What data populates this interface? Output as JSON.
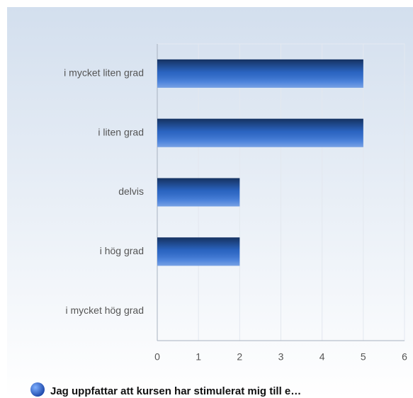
{
  "chart_data": {
    "type": "bar",
    "orientation": "horizontal",
    "categories": [
      "i mycket liten grad",
      "i liten grad",
      "delvis",
      "i hög grad",
      "i mycket hög grad"
    ],
    "series": [
      {
        "name": "Jag uppfattar att kursen har stimulerat mig till e…",
        "color": "#2f6fd6",
        "values": [
          5,
          5,
          2,
          2,
          0
        ]
      }
    ],
    "xlim": [
      0,
      6
    ],
    "xticks": [
      0,
      1,
      2,
      3,
      4,
      5,
      6
    ],
    "grid": true
  }
}
